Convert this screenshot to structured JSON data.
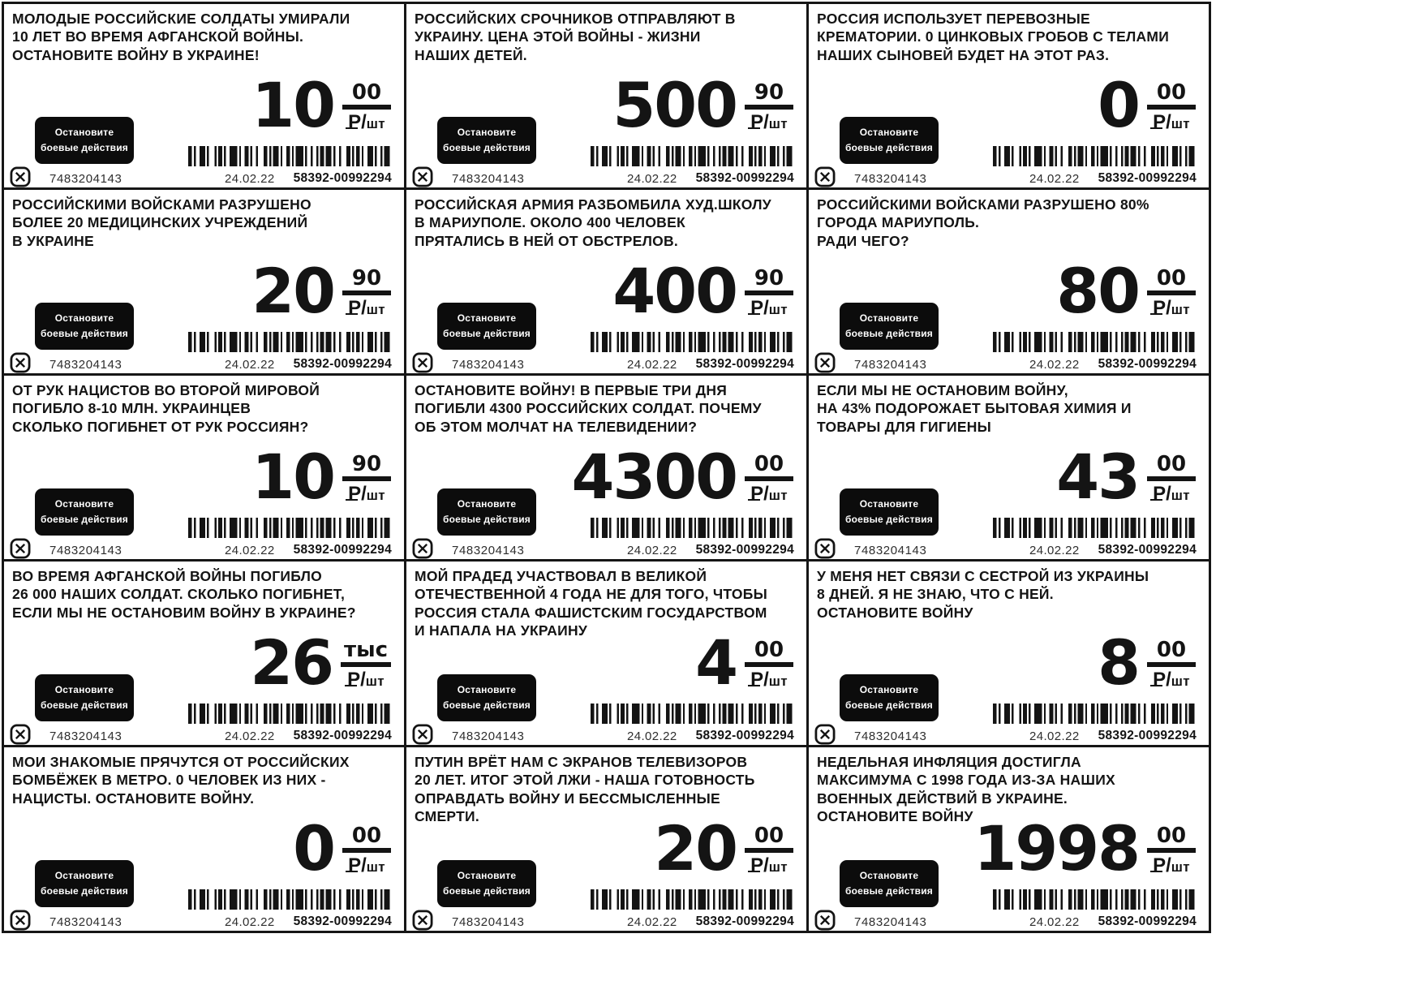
{
  "page": {
    "ink_color": "#141414",
    "paper_color": "#ffffff"
  },
  "shared": {
    "badge_line1": "Остановите",
    "badge_line2": "боевые действия",
    "sku": "7483204143",
    "date": "24.02.22",
    "barcode_number": "58392-00992294",
    "currency_letter": "Р",
    "currency_symbol": "₽",
    "unit_slash": "/",
    "unit_qty": "шт"
  },
  "tags": [
    {
      "headline": "МОЛОДЫЕ РОССИЙСКИЕ СОЛДАТЫ УМИРАЛИ\n10 ЛЕТ ВО ВРЕМЯ АФГАНСКОЙ ВОЙНЫ.\nОСТАНОВИТЕ ВОЙНУ В УКРАИНЕ!",
      "price_int": "10",
      "price_sup": "00"
    },
    {
      "headline": "РОССИЙСКИХ СРОЧНИКОВ ОТПРАВЛЯЮТ В\nУКРАИНУ. ЦЕНА ЭТОЙ ВОЙНЫ - ЖИЗНИ\nНАШИХ ДЕТЕЙ.",
      "price_int": "500",
      "price_sup": "90"
    },
    {
      "headline": "РОССИЯ ИСПОЛЬЗУЕТ ПЕРЕВОЗНЫЕ\nКРЕМАТОРИИ. 0 ЦИНКОВЫХ ГРОБОВ С ТЕЛАМИ\nНАШИХ СЫНОВЕЙ БУДЕТ НА ЭТОТ РАЗ.",
      "price_int": "0",
      "price_sup": "00"
    },
    {
      "headline": "РОССИЙСКИМИ ВОЙСКАМИ РАЗРУШЕНО\nБОЛЕЕ 20 МЕДИЦИНСКИХ УЧРЕЖДЕНИЙ\nВ УКРАИНЕ",
      "price_int": "20",
      "price_sup": "90"
    },
    {
      "headline": "РОССИЙСКАЯ АРМИЯ РАЗБОМБИЛА ХУД.ШКОЛУ\nВ МАРИУПОЛЕ. ОКОЛО 400 ЧЕЛОВЕК\nПРЯТАЛИСЬ В НЕЙ ОТ ОБСТРЕЛОВ.",
      "price_int": "400",
      "price_sup": "90"
    },
    {
      "headline": "РОССИЙСКИМИ ВОЙСКАМИ РАЗРУШЕНО 80%\nГОРОДА МАРИУПОЛЬ.\nРАДИ ЧЕГО?",
      "price_int": "80",
      "price_sup": "00"
    },
    {
      "headline": "ОТ РУК НАЦИСТОВ ВО ВТОРОЙ МИРОВОЙ\nПОГИБЛО 8-10 МЛН. УКРАИНЦЕВ\nСКОЛЬКО ПОГИБНЕТ ОТ РУК РОССИЯН?",
      "price_int": "10",
      "price_sup": "90"
    },
    {
      "headline": "ОСТАНОВИТЕ ВОЙНУ! В ПЕРВЫЕ ТРИ ДНЯ\nПОГИБЛИ 4300 РОССИЙСКИХ СОЛДАТ. ПОЧЕМУ\nОБ ЭТОМ МОЛЧАТ НА ТЕЛЕВИДЕНИИ?",
      "price_int": "4300",
      "price_sup": "00"
    },
    {
      "headline": "ЕСЛИ МЫ НЕ ОСТАНОВИМ ВОЙНУ,\nНА 43% ПОДОРОЖАЕТ БЫТОВАЯ ХИМИЯ И\nТОВАРЫ ДЛЯ ГИГИЕНЫ",
      "price_int": "43",
      "price_sup": "00"
    },
    {
      "headline": "ВО ВРЕМЯ АФГАНСКОЙ ВОЙНЫ ПОГИБЛО\n26 000 НАШИХ СОЛДАТ. СКОЛЬКО ПОГИБНЕТ,\nЕСЛИ МЫ НЕ ОСТАНОВИМ ВОЙНУ В УКРАИНЕ?",
      "price_int": "26",
      "price_sup": "тыс"
    },
    {
      "headline": "МОЙ ПРАДЕД УЧАСТВОВАЛ В ВЕЛИКОЙ\nОТЕЧЕСТВЕННОЙ 4 ГОДА НЕ ДЛЯ ТОГО, ЧТОБЫ\nРОССИЯ СТАЛА ФАШИСТСКИМ ГОСУДАРСТВОМ\nИ НАПАЛА НА УКРАИНУ",
      "price_int": "4",
      "price_sup": "00"
    },
    {
      "headline": "У МЕНЯ НЕТ СВЯЗИ С СЕСТРОЙ ИЗ УКРАИНЫ\n8 ДНЕЙ. Я НЕ ЗНАЮ, ЧТО С НЕЙ.\nОСТАНОВИТЕ ВОЙНУ",
      "price_int": "8",
      "price_sup": "00"
    },
    {
      "headline": "МОИ ЗНАКОМЫЕ ПРЯЧУТСЯ ОТ РОССИЙСКИХ\nБОМБЁЖЕК В МЕТРО. 0 ЧЕЛОВЕК ИЗ НИХ -\nНАЦИСТЫ. ОСТАНОВИТЕ ВОЙНУ.",
      "price_int": "0",
      "price_sup": "00"
    },
    {
      "headline": "ПУТИН ВРЁТ НАМ С ЭКРАНОВ ТЕЛЕВИЗОРОВ\n20 ЛЕТ. ИТОГ ЭТОЙ ЛЖИ - НАША ГОТОВНОСТЬ\nОПРАВДАТЬ ВОЙНУ И БЕССМЫСЛЕННЫЕ\nСМЕРТИ.",
      "price_int": "20",
      "price_sup": "00"
    },
    {
      "headline": "НЕДЕЛЬНАЯ ИНФЛЯЦИЯ ДОСТИГЛА\nМАКСИМУМА С 1998 ГОДА ИЗ-ЗА НАШИХ\nВОЕННЫХ ДЕЙСТВИЙ В УКРАИНЕ.\nОСТАНОВИТЕ ВОЙНУ",
      "price_int": "1998",
      "price_sup": "00"
    }
  ]
}
